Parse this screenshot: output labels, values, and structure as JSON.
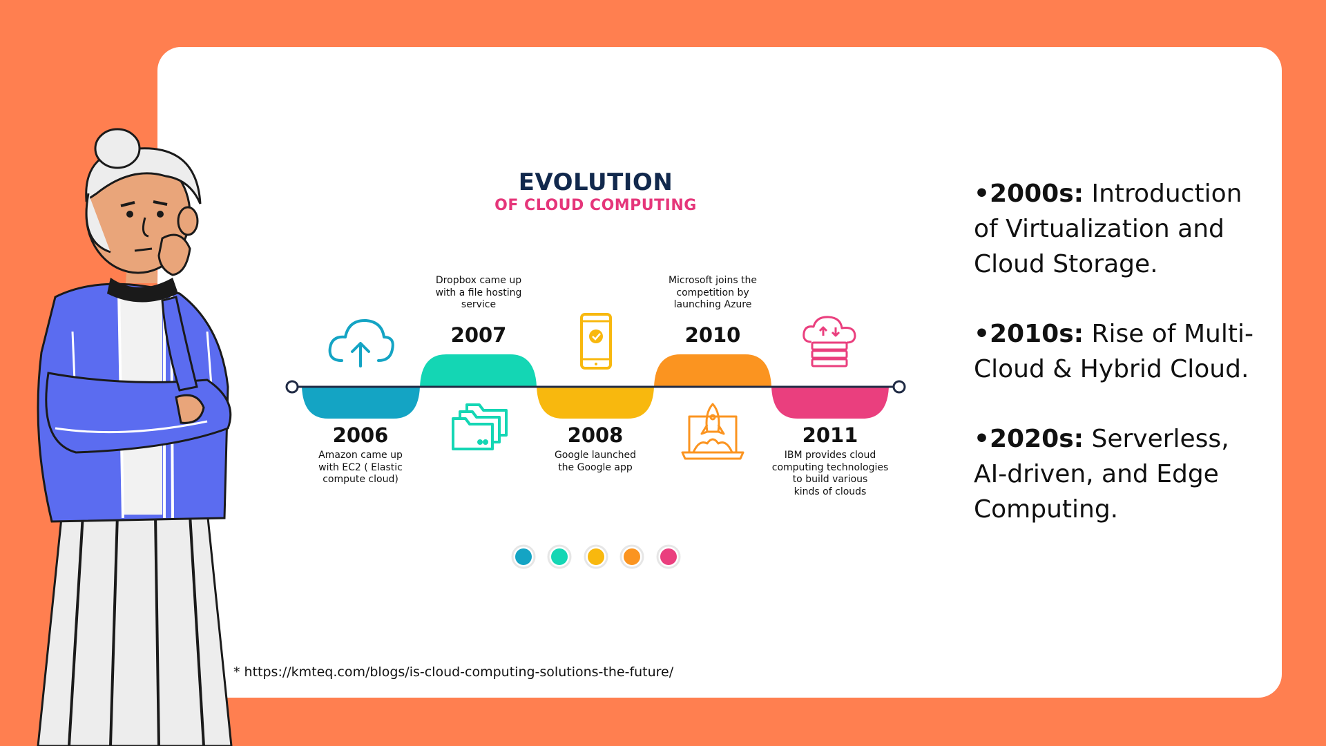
{
  "timeline": {
    "title": "EVOLUTION",
    "subtitle": "OF CLOUD COMPUTING",
    "milestones": [
      {
        "year": "2006",
        "text": [
          "Amazon came up",
          "with EC2 ( Elastic",
          "compute cloud)"
        ],
        "color": "#14A4C4",
        "icon": "cloud-upload-icon"
      },
      {
        "year": "2007",
        "text": [
          "Dropbox came up",
          "with a file hosting",
          "service"
        ],
        "color": "#14D6B4",
        "icon": "folders-icon"
      },
      {
        "year": "2008",
        "text": [
          "Google launched",
          "the Google app"
        ],
        "color": "#F8B80E",
        "icon": "smartphone-icon"
      },
      {
        "year": "2010",
        "text": [
          "Microsoft joins the",
          "competition by",
          "launching Azure"
        ],
        "color": "#FB9420",
        "icon": "rocket-laptop-icon"
      },
      {
        "year": "2011",
        "text": [
          "IBM provides cloud",
          "computing technologies",
          "to build various",
          "kinds of clouds"
        ],
        "color": "#EA3F7E",
        "icon": "cloud-server-icon"
      }
    ]
  },
  "bullets": [
    {
      "label": "•2000s:",
      "text": " Introduction of Virtualization and Cloud Storage."
    },
    {
      "label": "•2010s:",
      "text": " Rise of Multi-Cloud & Hybrid Cloud."
    },
    {
      "label": "•2020s:",
      "text": " Serverless, AI-driven, and Edge Computing."
    }
  ],
  "source": "* https://kmteq.com/blogs/is-cloud-computing-solutions-the-future/",
  "colors": {
    "background": "#FF7F50",
    "title": "#12294D",
    "subtitle": "#E5367A",
    "jacket": "#5B6CF0",
    "skin": "#E9A57A"
  }
}
